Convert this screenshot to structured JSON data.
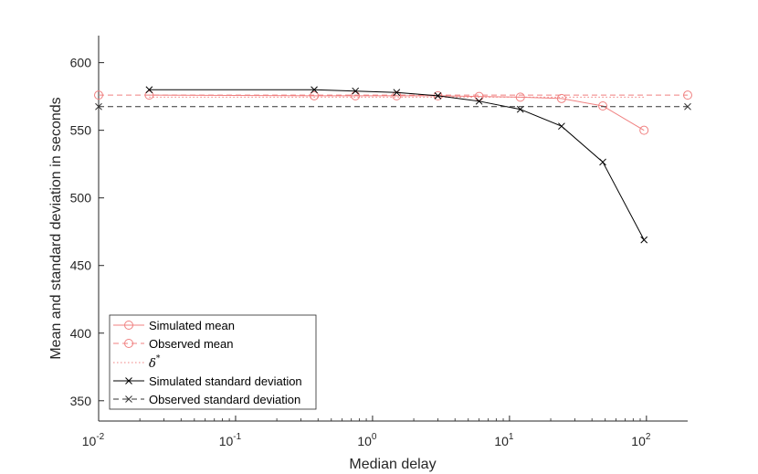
{
  "chart_data": {
    "type": "line",
    "xlabel": "Median delay",
    "ylabel": "Mean and standard deviation in seconds",
    "x_scale": "log",
    "xlim": [
      0.01,
      200
    ],
    "ylim": [
      335,
      620
    ],
    "x_ticks": [
      0.01,
      0.1,
      1,
      10,
      100
    ],
    "x_tick_labels": [
      {
        "base": "10",
        "exp": "-2"
      },
      {
        "base": "10",
        "exp": "-1"
      },
      {
        "base": "10",
        "exp": "0"
      },
      {
        "base": "10",
        "exp": "1"
      },
      {
        "base": "10",
        "exp": "2"
      }
    ],
    "y_ticks": [
      350,
      400,
      450,
      500,
      550,
      600
    ],
    "y_tick_labels": [
      "350",
      "400",
      "450",
      "500",
      "550",
      "600"
    ],
    "grid": false,
    "legend_position": "bottom-left",
    "colors": {
      "pink": "#f08080",
      "black": "#000000",
      "gray": "#333333",
      "axis": "#262626"
    },
    "series": [
      {
        "name": "Simulated mean",
        "color": "#f08080",
        "line": "solid",
        "marker": "circle",
        "x": [
          0.0234,
          0.375,
          0.75,
          1.5,
          3,
          6,
          12,
          24,
          48,
          96
        ],
        "y": [
          576,
          575.5,
          575.5,
          575.5,
          575.5,
          575,
          574.5,
          573.5,
          568,
          550
        ]
      },
      {
        "name": "Observed mean",
        "color": "#f08080",
        "line": "dashed",
        "marker": "circle",
        "x": [
          0.01,
          200
        ],
        "y": [
          576,
          576
        ]
      },
      {
        "name": "δ*",
        "color": "#f08080",
        "line": "dotted",
        "marker": "none",
        "x": [
          0.0234,
          96
        ],
        "y": [
          574.5,
          574.5
        ]
      },
      {
        "name": "Simulated standard deviation",
        "color": "#000000",
        "line": "solid",
        "marker": "x",
        "x": [
          0.0234,
          0.375,
          0.75,
          1.5,
          3,
          6,
          12,
          24,
          48,
          96
        ],
        "y": [
          580,
          580,
          579,
          578,
          575.5,
          571.5,
          565.5,
          553,
          526.5,
          469
        ]
      },
      {
        "name": "Observed standard deviation",
        "color": "#333333",
        "line": "dashed",
        "marker": "x",
        "x": [
          0.01,
          200
        ],
        "y": [
          567.5,
          567.5
        ]
      }
    ],
    "legend": {
      "entries": [
        {
          "label": "Simulated mean"
        },
        {
          "label": "Observed mean"
        },
        {
          "label_main": "δ",
          "label_sup": "*"
        },
        {
          "label": "Simulated standard deviation"
        },
        {
          "label": "Observed standard deviation"
        }
      ]
    }
  }
}
